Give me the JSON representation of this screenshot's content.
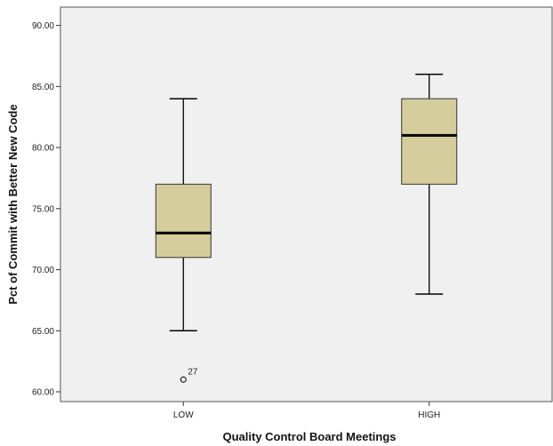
{
  "chart_data": {
    "type": "boxplot",
    "title": "",
    "xlabel": "Quality Control Board Meetings",
    "ylabel": "Pct of Commit with Better New Code",
    "ylim": [
      59.2,
      91.5
    ],
    "yticks": [
      60,
      65,
      70,
      75,
      80,
      85,
      90
    ],
    "ytick_labels": [
      "60.00",
      "65.00",
      "70.00",
      "75.00",
      "80.00",
      "85.00",
      "90.00"
    ],
    "categories": [
      "LOW",
      "HIGH"
    ],
    "grid": false,
    "legend": "none",
    "boxes": [
      {
        "category": "LOW",
        "whisker_low": 65,
        "q1": 71,
        "median": 73,
        "q3": 77,
        "whisker_high": 84,
        "outliers": [
          {
            "value": 61,
            "label": "27"
          }
        ]
      },
      {
        "category": "HIGH",
        "whisker_low": 68,
        "q1": 77,
        "median": 81,
        "q3": 84,
        "whisker_high": 86,
        "outliers": []
      }
    ],
    "colors": {
      "plot_background": "#f0f0f0",
      "box_fill": "#d5cd9b",
      "line": "#000000"
    }
  }
}
